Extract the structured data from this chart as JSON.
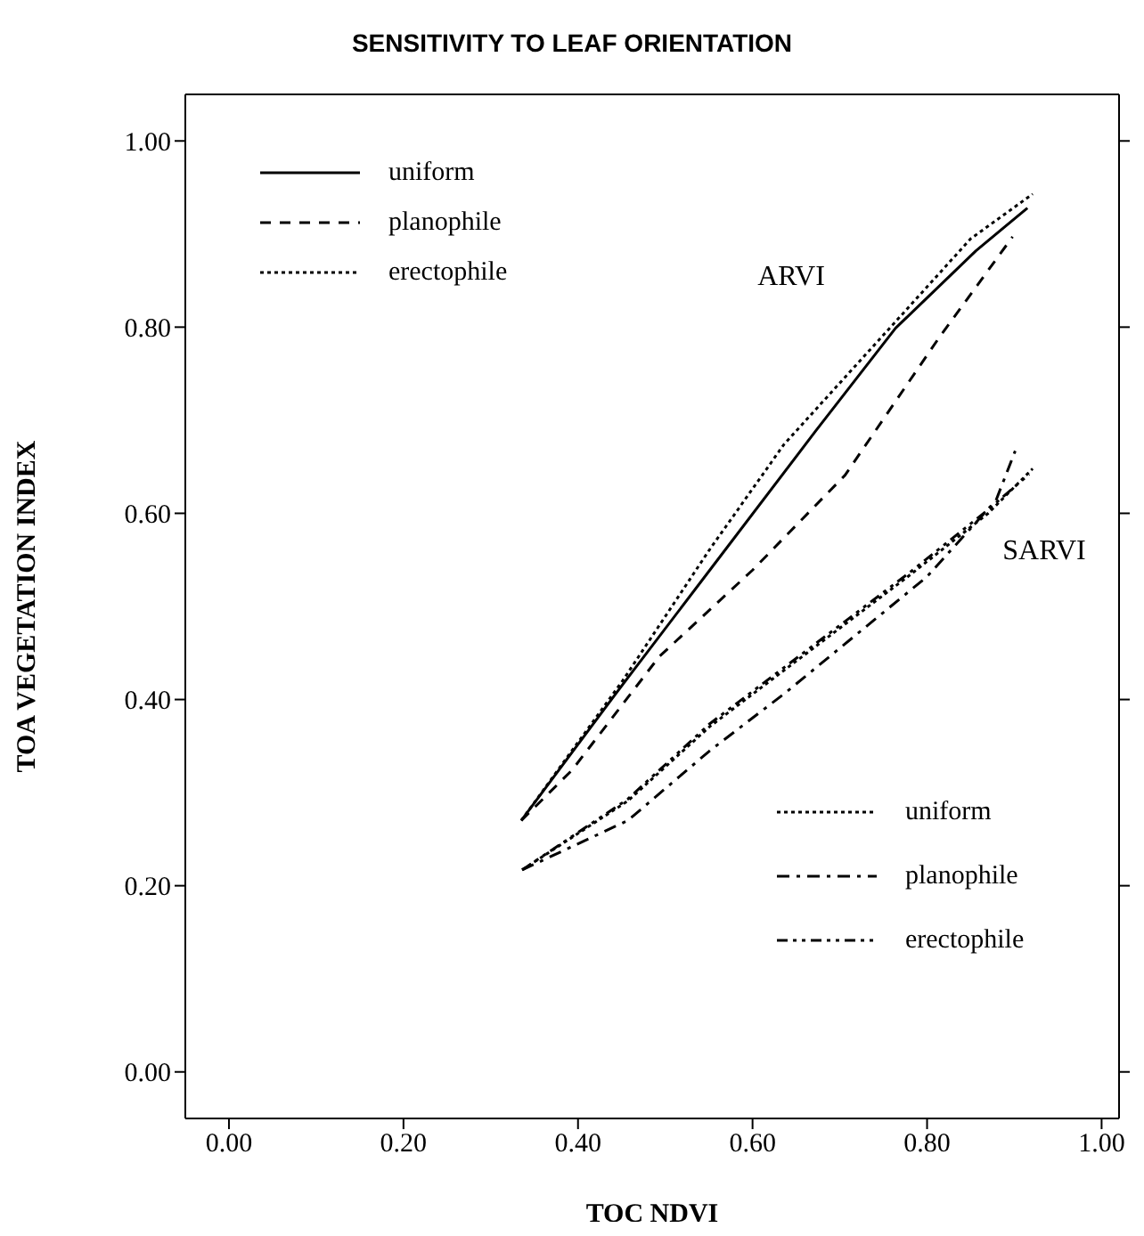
{
  "chart_data": {
    "type": "line",
    "title": "SENSITIVITY TO LEAF ORIENTATION",
    "xlabel": "TOC NDVI",
    "ylabel": "TOA VEGETATION INDEX",
    "xlim": [
      -0.05,
      1.02
    ],
    "ylim": [
      -0.05,
      1.05
    ],
    "xticks": [
      {
        "value": 0,
        "label": "0.00"
      },
      {
        "value": 0.2,
        "label": "0.20"
      },
      {
        "value": 0.4,
        "label": "0.40"
      },
      {
        "value": 0.6,
        "label": "0.60"
      },
      {
        "value": 0.8,
        "label": "0.80"
      },
      {
        "value": 1,
        "label": "1.00"
      }
    ],
    "yticks": [
      {
        "value": 0,
        "label": "0.00"
      },
      {
        "value": 0.2,
        "label": "0.20"
      },
      {
        "value": 0.4,
        "label": "0.40"
      },
      {
        "value": 0.6,
        "label": "0.60"
      },
      {
        "value": 0.8,
        "label": "0.80"
      },
      {
        "value": 1,
        "label": "1.00"
      }
    ],
    "marker": "none",
    "legend": [
      "top left",
      "bottom right"
    ],
    "annotations": [
      "ARVI",
      "SARVI"
    ],
    "series": [
      {
        "name": "uniform",
        "color": "#000000",
        "line_style": "solid",
        "x": [
          0.335,
          0.443,
          0.551,
          0.672,
          0.764,
          0.856,
          0.915
        ],
        "values": [
          0.27,
          0.406,
          0.539,
          0.688,
          0.799,
          0.882,
          0.928
        ]
      },
      {
        "name": "planophile",
        "color": "#000000",
        "line_style": "dashed",
        "x": [
          0.335,
          0.393,
          0.493,
          0.6,
          0.706,
          0.814,
          0.898
        ],
        "values": [
          0.27,
          0.324,
          0.446,
          0.539,
          0.641,
          0.789,
          0.897
        ]
      },
      {
        "name": "erectophile",
        "color": "#000000",
        "line_style": "dotted",
        "x": [
          0.335,
          0.451,
          0.55,
          0.636,
          0.764,
          0.85,
          0.921
        ],
        "values": [
          0.27,
          0.42,
          0.56,
          0.674,
          0.806,
          0.895,
          0.943
        ]
      },
      {
        "name": "uniform",
        "color": "#000000",
        "line_style": "dotted",
        "x": [
          0.336,
          0.457,
          0.551,
          0.778,
          0.87,
          0.921
        ],
        "values": [
          0.217,
          0.291,
          0.371,
          0.532,
          0.6,
          0.648
        ]
      },
      {
        "name": "planophile",
        "color": "#000000",
        "line_style": "dashdot",
        "x": [
          0.336,
          0.457,
          0.551,
          0.636,
          0.8,
          0.879,
          0.901
        ],
        "values": [
          0.217,
          0.27,
          0.345,
          0.406,
          0.532,
          0.614,
          0.667
        ]
      },
      {
        "name": "erectophile",
        "color": "#000000",
        "line_style": "dashdotdot",
        "x": [
          0.336,
          0.457,
          0.551,
          0.778,
          0.87,
          0.917
        ],
        "values": [
          0.217,
          0.293,
          0.374,
          0.535,
          0.604,
          0.642
        ]
      }
    ]
  }
}
